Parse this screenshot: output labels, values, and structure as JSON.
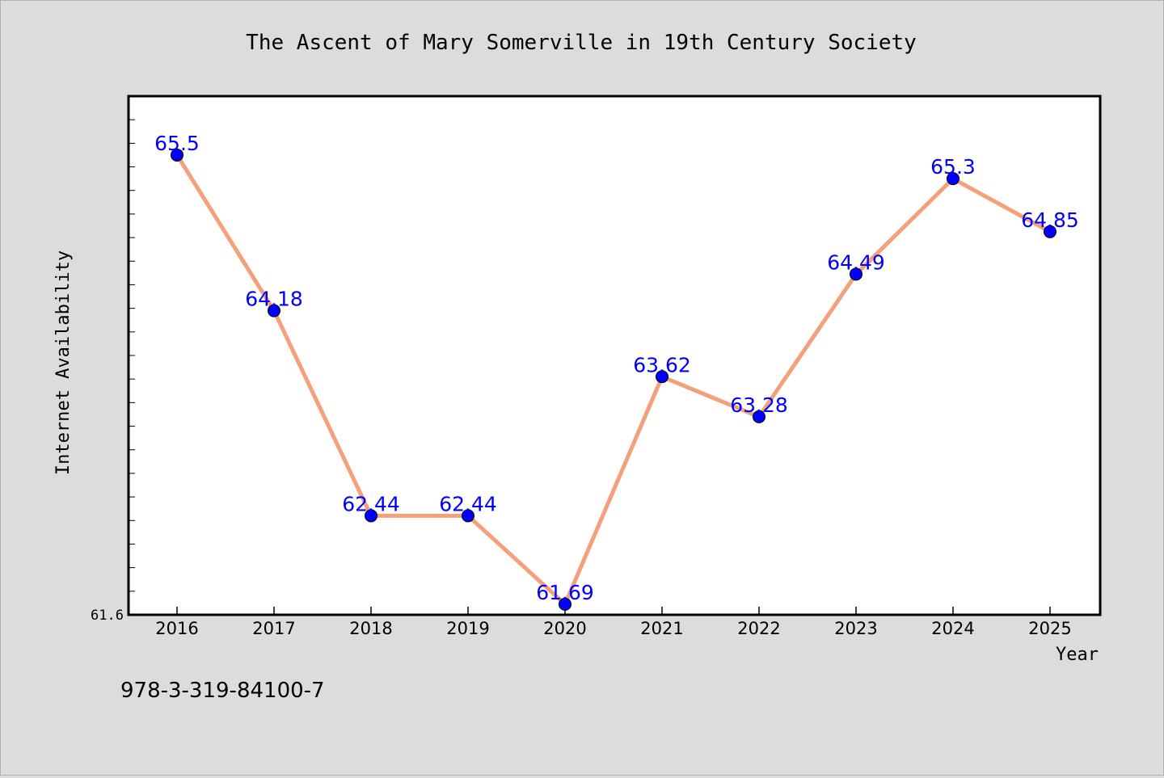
{
  "chart_data": {
    "type": "line",
    "title": "The Ascent of Mary Somerville in 19th Century Society",
    "xlabel": "Year",
    "ylabel": "Internet Availability",
    "categories": [
      "2016",
      "2017",
      "2018",
      "2019",
      "2020",
      "2021",
      "2022",
      "2023",
      "2024",
      "2025"
    ],
    "values": [
      65.5,
      64.18,
      62.44,
      62.44,
      61.69,
      63.62,
      63.28,
      64.49,
      65.3,
      64.85
    ],
    "data_labels": [
      "65.5",
      "64.18",
      "62.44",
      "62.44",
      "61.69",
      "63.62",
      "63.28",
      "64.49",
      "65.3",
      "64.85"
    ],
    "y_tick_labels": [
      "61.6"
    ],
    "ylim": [
      61.6,
      66.0
    ],
    "grid": false,
    "legend": "none",
    "line_color": "#f4a07a",
    "marker_color": "#0000ff",
    "label_color": "#0000ff",
    "plot_background": "#ffffff",
    "page_background": "#dcdcdc"
  },
  "footer_text": "978-3-319-84100-7"
}
